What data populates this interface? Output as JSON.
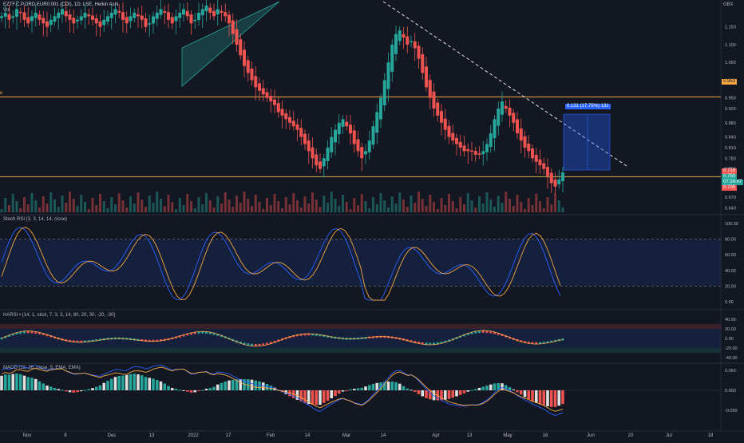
{
  "header": {
    "title": "EZTF.C.P.ORD EUR0.001 (CDI), 1D, LSE, Heikin Ashi",
    "sub": "Vol",
    "left_label": "e",
    "currency": "GBX"
  },
  "price_panel": {
    "ylim": [
      0.63,
      1.21
    ],
    "ticks": [
      "1.150",
      "1.100",
      "1.050",
      "1.000",
      "0.950",
      "0.920",
      "0.880",
      "0.840",
      "0.810",
      "0.780",
      "0.750",
      "0.710",
      "0.670",
      "0.640"
    ],
    "resistance": 0.953,
    "resistance_label": "0.953",
    "support": 0.728,
    "support_label": "0.728",
    "last_price_label": "0.750",
    "countdown_label": "07:24:47",
    "low_label": "0.705",
    "position_label": "0.131 (17.75%) 131"
  },
  "stoch_panel": {
    "title": "Stoch RSI (3, 3, 14, 14, close)",
    "ticks": [
      "100.00",
      "80.00",
      "60.00",
      "40.00",
      "20.00",
      "0.00"
    ],
    "upper": 80,
    "lower": 20
  },
  "harsi_panel": {
    "title": "HARSI • (14, 1, stick, 7, 3, 3, 14, 80, 20, 30, -20, -30)",
    "ticks": [
      "40.00",
      "20.00",
      "0.00",
      "-20.00",
      "-40.00"
    ]
  },
  "macd_panel": {
    "title": "MACD (12, 26, close, 5, EMA, EMA)",
    "ticks": [
      "0.050",
      "0.000",
      "-0.050"
    ]
  },
  "x_axis": {
    "labels": [
      "Nov",
      "8",
      "Dec",
      "13",
      "2022",
      "17",
      "Feb",
      "14",
      "Mar",
      "14",
      "Apr",
      "13",
      "May",
      "16",
      "Jun",
      "20",
      "Jul",
      "18"
    ]
  },
  "colors": {
    "up": "#26a69a",
    "down": "#ef5350",
    "bg": "#131722",
    "orange": "#f5a742",
    "blue": "#2962ff"
  },
  "chart_data": {
    "type": "candlestick",
    "title": "EZTF.C.P.ORD EUR0.001 (CDI), 1D, LSE, Heikin Ashi",
    "ylabel": "GBX",
    "ylim": [
      0.63,
      1.21
    ],
    "horizontal_lines": [
      0.953,
      0.728
    ],
    "trendline": {
      "from": [
        "Mar 14",
        1.21
      ],
      "to": [
        "Jun 16",
        0.748
      ]
    },
    "closes": [
      1.18,
      1.19,
      1.17,
      1.18,
      1.2,
      1.19,
      1.17,
      1.16,
      1.18,
      1.19,
      1.17,
      1.16,
      1.15,
      1.17,
      1.18,
      1.19,
      1.2,
      1.18,
      1.17,
      1.16,
      1.17,
      1.18,
      1.19,
      1.18,
      1.17,
      1.16,
      1.15,
      1.17,
      1.18,
      1.19,
      1.2,
      1.19,
      1.17,
      1.16,
      1.18,
      1.19,
      1.18,
      1.17,
      1.15,
      1.16,
      1.18,
      1.19,
      1.2,
      1.19,
      1.17,
      1.16,
      1.18,
      1.19,
      1.2,
      1.18,
      1.16,
      1.17,
      1.19,
      1.2,
      1.21,
      1.19,
      1.18,
      1.2,
      1.19,
      1.18,
      1.16,
      1.13,
      1.1,
      1.07,
      1.04,
      1.02,
      1.0,
      0.98,
      0.97,
      0.96,
      0.95,
      0.94,
      0.93,
      0.91,
      0.9,
      0.89,
      0.88,
      0.87,
      0.86,
      0.84,
      0.82,
      0.8,
      0.78,
      0.76,
      0.75,
      0.78,
      0.81,
      0.84,
      0.86,
      0.88,
      0.89,
      0.87,
      0.85,
      0.82,
      0.8,
      0.78,
      0.8,
      0.83,
      0.87,
      0.91,
      0.95,
      1.0,
      1.05,
      1.1,
      1.13,
      1.14,
      1.12,
      1.1,
      1.11,
      1.09,
      1.06,
      1.02,
      0.98,
      0.95,
      0.92,
      0.9,
      0.88,
      0.86,
      0.84,
      0.83,
      0.82,
      0.81,
      0.8,
      0.8,
      0.8,
      0.79,
      0.79,
      0.8,
      0.82,
      0.85,
      0.89,
      0.92,
      0.94,
      0.92,
      0.9,
      0.88,
      0.85,
      0.83,
      0.81,
      0.8,
      0.78,
      0.77,
      0.76,
      0.75,
      0.73,
      0.71,
      0.7,
      0.72,
      0.74
    ]
  }
}
